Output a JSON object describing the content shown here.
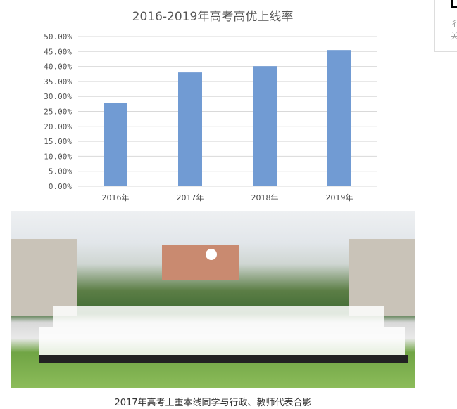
{
  "chart_data": {
    "type": "bar",
    "title": "2016-2019年高考高优上线率",
    "categories": [
      "2016年",
      "2017年",
      "2018年",
      "2019年"
    ],
    "values": [
      27.7,
      38.0,
      40.1,
      45.5
    ],
    "ylim": [
      0,
      50
    ],
    "yticks": [
      "0.00%",
      "5.00%",
      "10.00%",
      "15.00%",
      "20.00%",
      "25.00%",
      "30.00%",
      "35.00%",
      "40.00%",
      "45.00%",
      "50.00%"
    ],
    "grid": true,
    "color": "#719bd3"
  },
  "photo": {
    "caption": "2017年高考上重本线同学与行政、教师代表合影"
  },
  "sidebar": {
    "line1": "彳",
    "line2": "关"
  }
}
